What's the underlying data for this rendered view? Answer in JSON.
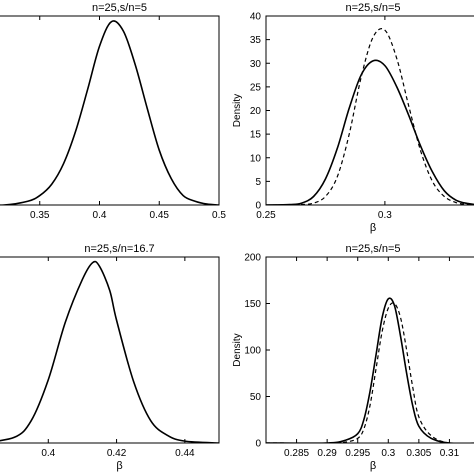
{
  "chart_data": [
    {
      "type": "line",
      "title": "n=25,s/n=5",
      "xlabel": "",
      "ylabel": "",
      "xlim": [
        0.3,
        0.5
      ],
      "ylim": [
        0,
        1
      ],
      "xticks": [
        0.35,
        0.4,
        0.45,
        0.5
      ],
      "xtick_labels": [
        "0.35",
        "0.4",
        "0.45",
        "0.5"
      ],
      "yticks": [],
      "ytick_labels": [],
      "y_axis_visible": false,
      "grid": false,
      "series": [
        {
          "style": "solid",
          "x": [
            0.3,
            0.32,
            0.34,
            0.35,
            0.36,
            0.37,
            0.38,
            0.39,
            0.4,
            0.41,
            0.42,
            0.43,
            0.44,
            0.45,
            0.46,
            0.47,
            0.48,
            0.49,
            0.5
          ],
          "y": [
            0.0,
            0.0,
            0.02,
            0.05,
            0.11,
            0.22,
            0.39,
            0.61,
            0.84,
            0.97,
            0.92,
            0.74,
            0.51,
            0.29,
            0.14,
            0.05,
            0.02,
            0.005,
            0.0
          ]
        }
      ]
    },
    {
      "type": "line",
      "title": "n=25,s/n=5",
      "xlabel": "β",
      "ylabel": "Density",
      "xlim": [
        0.25,
        0.34
      ],
      "ylim": [
        0,
        40
      ],
      "xticks": [
        0.25,
        0.3
      ],
      "xtick_labels": [
        "0.25",
        "0.3"
      ],
      "yticks": [
        0,
        5,
        10,
        15,
        20,
        25,
        30,
        35,
        40
      ],
      "ytick_labels": [
        "0",
        "5",
        "10",
        "15",
        "20",
        "25",
        "30",
        "35",
        "40"
      ],
      "grid": false,
      "series": [
        {
          "style": "solid",
          "x": [
            0.25,
            0.26,
            0.265,
            0.27,
            0.275,
            0.28,
            0.285,
            0.29,
            0.295,
            0.3,
            0.305,
            0.31,
            0.315,
            0.32,
            0.325,
            0.33,
            0.335,
            0.34
          ],
          "y": [
            0.0,
            0.1,
            0.4,
            1.8,
            5.5,
            12.0,
            20.5,
            27.5,
            30.5,
            29.5,
            25.0,
            19.0,
            12.5,
            7.0,
            3.0,
            1.0,
            0.3,
            0.0
          ]
        },
        {
          "style": "dashed",
          "x": [
            0.25,
            0.26,
            0.265,
            0.27,
            0.275,
            0.28,
            0.285,
            0.29,
            0.295,
            0.3,
            0.305,
            0.31,
            0.315,
            0.32,
            0.325,
            0.33,
            0.335,
            0.34
          ],
          "y": [
            0.0,
            0.0,
            0.1,
            0.4,
            1.8,
            6.0,
            15.0,
            27.0,
            35.5,
            37.0,
            31.0,
            21.0,
            11.5,
            5.0,
            1.8,
            0.5,
            0.1,
            0.0
          ]
        }
      ]
    },
    {
      "type": "line",
      "title": "n=25,s/n=16.7",
      "xlabel": "β",
      "ylabel": "",
      "xlim": [
        0.38,
        0.45
      ],
      "ylim": [
        0,
        1
      ],
      "xticks": [
        0.4,
        0.42,
        0.44
      ],
      "xtick_labels": [
        "0.4",
        "0.42",
        "0.44"
      ],
      "yticks": [],
      "ytick_labels": [],
      "y_axis_visible": false,
      "grid": false,
      "series": [
        {
          "style": "solid",
          "x": [
            0.38,
            0.39,
            0.395,
            0.4,
            0.405,
            0.41,
            0.413,
            0.415,
            0.418,
            0.42,
            0.425,
            0.43,
            0.435,
            0.44,
            0.45
          ],
          "y": [
            0.0,
            0.03,
            0.12,
            0.34,
            0.65,
            0.88,
            0.97,
            0.95,
            0.82,
            0.66,
            0.33,
            0.12,
            0.04,
            0.01,
            0.0
          ]
        }
      ]
    },
    {
      "type": "line",
      "title": "n=25,s/n=5",
      "xlabel": "β",
      "ylabel": "Density",
      "xlim": [
        0.28,
        0.315
      ],
      "ylim": [
        0,
        200
      ],
      "xticks": [
        0.285,
        0.29,
        0.295,
        0.3,
        0.305,
        0.31
      ],
      "xtick_labels": [
        "0.285",
        "0.29",
        "0.295",
        "0.3",
        "0.305",
        "0.31"
      ],
      "yticks": [
        0,
        50,
        100,
        150,
        200
      ],
      "ytick_labels": [
        "0",
        "50",
        "100",
        "150",
        "200"
      ],
      "grid": false,
      "series": [
        {
          "style": "solid",
          "x": [
            0.28,
            0.29,
            0.293,
            0.295,
            0.296,
            0.297,
            0.298,
            0.299,
            0.3,
            0.301,
            0.302,
            0.303,
            0.304,
            0.305,
            0.307,
            0.31,
            0.315
          ],
          "y": [
            0,
            0,
            3,
            10,
            25,
            55,
            95,
            135,
            155,
            148,
            115,
            75,
            40,
            18,
            5,
            0,
            0
          ]
        },
        {
          "style": "dashed",
          "x": [
            0.28,
            0.29,
            0.293,
            0.295,
            0.296,
            0.297,
            0.298,
            0.299,
            0.3,
            0.301,
            0.302,
            0.303,
            0.304,
            0.305,
            0.307,
            0.31,
            0.315
          ],
          "y": [
            0,
            0,
            1,
            5,
            15,
            40,
            80,
            120,
            145,
            150,
            135,
            100,
            60,
            28,
            8,
            0,
            0
          ]
        }
      ]
    }
  ]
}
